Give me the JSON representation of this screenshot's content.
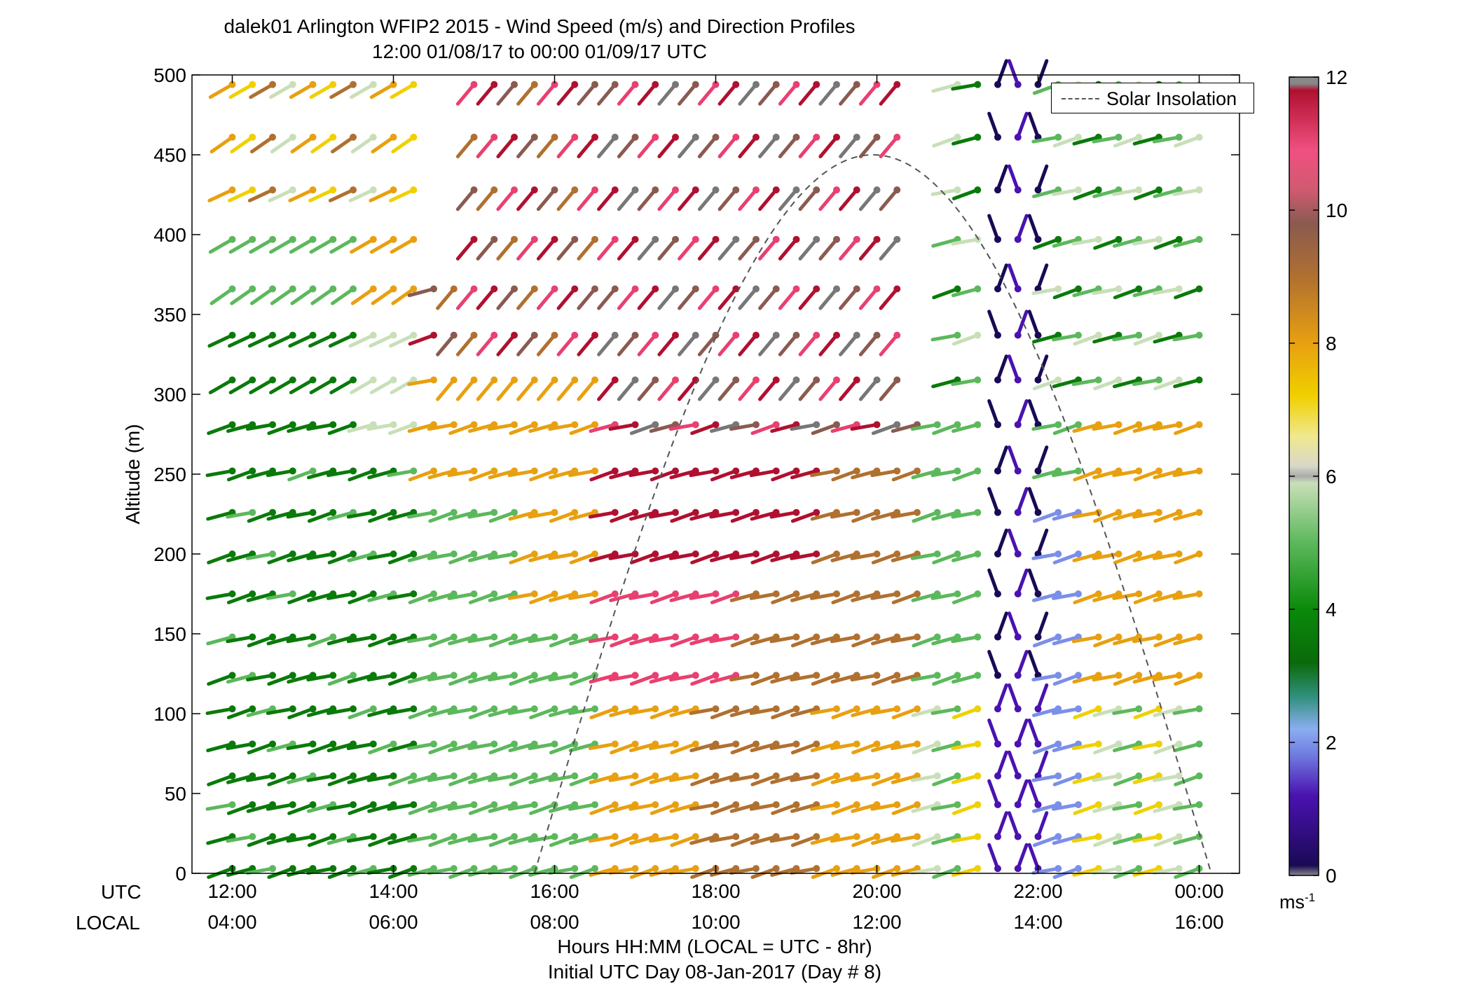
{
  "title": {
    "line1": "dalek01 Arlington WFIP2 2015 - Wind Speed (m/s) and Direction Profiles",
    "line2": "12:00 01/08/17 to 00:00 01/09/17  UTC"
  },
  "xaxis": {
    "utc_label": "UTC",
    "local_label": "LOCAL",
    "utc_ticks": [
      "12:00",
      "14:00",
      "16:00",
      "18:00",
      "20:00",
      "22:00",
      "00:00"
    ],
    "local_ticks": [
      "04:00",
      "06:00",
      "08:00",
      "10:00",
      "12:00",
      "14:00",
      "16:00"
    ],
    "label_line1": "Hours HH:MM  (LOCAL = UTC - 8hr)",
    "label_line2": "Initial UTC Day 08-Jan-2017 (Day # 8)"
  },
  "yaxis": {
    "label": "Altitude (m)",
    "ticks": [
      "0",
      "50",
      "100",
      "150",
      "200",
      "250",
      "300",
      "350",
      "400",
      "450",
      "500"
    ]
  },
  "legend": {
    "solar_label": "Solar Insolation"
  },
  "colorbar": {
    "ticks": [
      "0",
      "2",
      "4",
      "6",
      "8",
      "10",
      "12"
    ],
    "unit": "ms",
    "unit_exp": "-1"
  },
  "colors": {
    "calm": "#888888",
    "s0": "#1a0a55",
    "s1": "#4a12b0",
    "s2": "#7b8fe8",
    "s3": "#2f8f7a",
    "s4": "#0a7a0a",
    "s5": "#5cb85c",
    "s6": "#c8dfb8",
    "s6b": "#d8d8d8",
    "s7": "#f0d000",
    "s8": "#e8a010",
    "s9": "#b07030",
    "s10": "#8a5a50",
    "s11": "#e84070",
    "s12": "#b01030",
    "gray": "#777777"
  },
  "chart_data": {
    "type": "wind_barb_profile",
    "title": "dalek01 Arlington WFIP2 2015 - Wind Speed (m/s) and Direction Profiles",
    "subtitle": "12:00 01/08/17 to 00:00 01/09/17  UTC",
    "xlabel": "Hours HH:MM  (LOCAL = UTC - 8hr)",
    "ylabel": "Altitude (m)",
    "x_range_utc_hours": [
      11.5,
      24.5
    ],
    "ylim": [
      0,
      500
    ],
    "colorbar_range_ms": [
      0,
      12
    ],
    "altitudes_m": [
      3,
      23,
      43,
      61,
      81,
      103,
      124,
      148,
      175,
      200,
      226,
      252,
      281,
      309,
      337,
      366,
      397,
      428,
      461,
      494
    ],
    "time_step_hours": 0.25,
    "time_start_utc": 12.0,
    "time_end_utc": 24.0,
    "gaps": [
      {
        "alt_from_m": 397,
        "alt_to_m": 494,
        "t_from_utc": 14.5,
        "t_to_utc": 14.75
      },
      {
        "alt_from_m": 309,
        "alt_to_m": 494,
        "t_from_utc": 20.5,
        "t_to_utc": 20.75
      }
    ],
    "solar_insolation": {
      "start_utc": 15.75,
      "peak_utc": 20.0,
      "end_utc": 24.15,
      "peak_m": 450
    },
    "legend": {
      "entries": [
        "Solar Insolation"
      ],
      "position": "top-right"
    }
  }
}
